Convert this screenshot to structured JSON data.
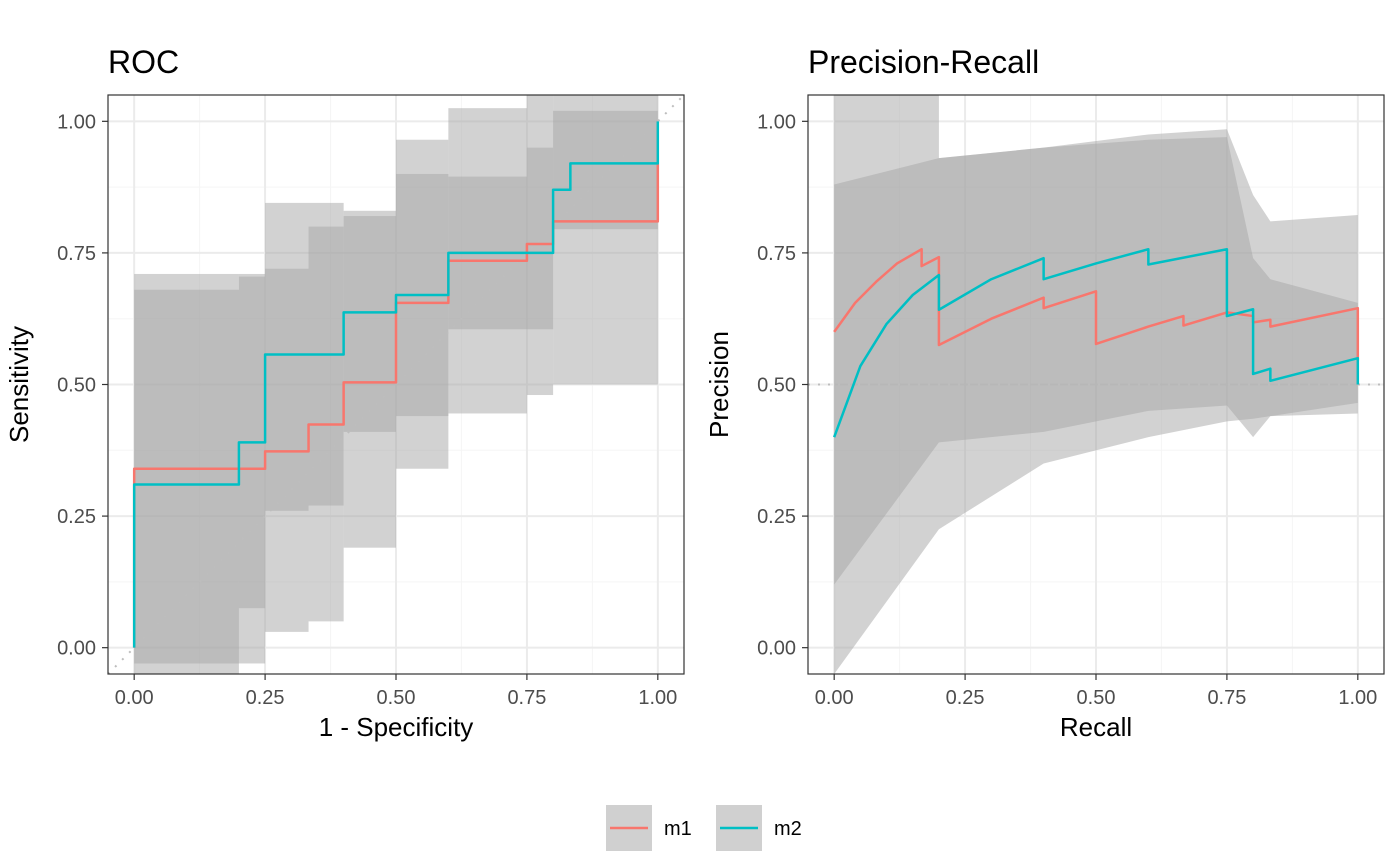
{
  "colors": {
    "m1": "#F8766D",
    "m2": "#00BFC4",
    "ci_band": "#a6a6a6",
    "grid_major": "#ebebeb",
    "grid_minor": "#f5f5f5",
    "panel_border": "#333333",
    "reference": "#bdbdbd",
    "legend_key_bg": "#d0d0d0"
  },
  "legend": {
    "position": "bottom",
    "items": [
      {
        "label": "m1",
        "color": "#F8766D"
      },
      {
        "label": "m2",
        "color": "#00BFC4"
      }
    ]
  },
  "chart_data": [
    {
      "type": "line",
      "title": "ROC",
      "xlabel": "1 - Specificity",
      "ylabel": "Sensitivity",
      "xlim": [
        -0.05,
        1.05
      ],
      "ylim": [
        -0.05,
        1.05
      ],
      "xticks": [
        "0.00",
        "0.25",
        "0.50",
        "0.75",
        "1.00"
      ],
      "yticks": [
        "0.00",
        "0.25",
        "0.50",
        "0.75",
        "1.00"
      ],
      "tick_values": [
        0,
        0.25,
        0.5,
        0.75,
        1.0
      ],
      "grid": true,
      "reference_line": "diagonal",
      "series": [
        {
          "name": "m1",
          "x": [
            0,
            0,
            0.2,
            0.25,
            0.25,
            0.333,
            0.333,
            0.4,
            0.4,
            0.5,
            0.5,
            0.6,
            0.6,
            0.75,
            0.75,
            0.8,
            0.8,
            1.0,
            1.0
          ],
          "y": [
            0,
            0.34,
            0.34,
            0.34,
            0.373,
            0.373,
            0.424,
            0.424,
            0.504,
            0.504,
            0.655,
            0.655,
            0.735,
            0.735,
            0.767,
            0.767,
            0.81,
            0.81,
            0.92
          ],
          "band_inner": [
            {
              "x0": 0,
              "x1": 0.2,
              "lo": -0.05,
              "hi": 0.68
            },
            {
              "x0": 0.2,
              "x1": 0.25,
              "lo": 0.075,
              "hi": 0.705
            },
            {
              "x0": 0.25,
              "x1": 0.333,
              "lo": 0.26,
              "hi": 0.72
            },
            {
              "x0": 0.333,
              "x1": 0.4,
              "lo": 0.27,
              "hi": 0.8
            },
            {
              "x0": 0.4,
              "x1": 0.5,
              "lo": 0.41,
              "hi": 0.82
            },
            {
              "x0": 0.5,
              "x1": 0.6,
              "lo": 0.44,
              "hi": 0.9
            },
            {
              "x0": 0.6,
              "x1": 0.75,
              "lo": 0.605,
              "hi": 0.895
            },
            {
              "x0": 0.75,
              "x1": 0.8,
              "lo": 0.605,
              "hi": 0.95
            },
            {
              "x0": 0.8,
              "x1": 1.0,
              "lo": 0.795,
              "hi": 1.02
            }
          ]
        },
        {
          "name": "m2",
          "x": [
            0,
            0,
            0.2,
            0.2,
            0.25,
            0.25,
            0.4,
            0.4,
            0.5,
            0.5,
            0.6,
            0.6,
            0.8,
            0.8,
            0.833,
            0.833,
            1.0,
            1.0
          ],
          "y": [
            0,
            0.31,
            0.31,
            0.39,
            0.39,
            0.557,
            0.557,
            0.637,
            0.637,
            0.67,
            0.67,
            0.75,
            0.75,
            0.87,
            0.87,
            0.92,
            0.92,
            1.0
          ],
          "band_inner": [
            {
              "x0": 0,
              "x1": 0.2,
              "lo": -0.03,
              "hi": 0.71
            },
            {
              "x0": 0.2,
              "x1": 0.25,
              "lo": -0.03,
              "hi": 0.71
            },
            {
              "x0": 0.25,
              "x1": 0.333,
              "lo": 0.03,
              "hi": 0.845
            },
            {
              "x0": 0.333,
              "x1": 0.4,
              "lo": 0.05,
              "hi": 0.845
            },
            {
              "x0": 0.4,
              "x1": 0.5,
              "lo": 0.19,
              "hi": 0.83
            },
            {
              "x0": 0.5,
              "x1": 0.6,
              "lo": 0.34,
              "hi": 0.965
            },
            {
              "x0": 0.6,
              "x1": 0.75,
              "lo": 0.445,
              "hi": 1.025
            },
            {
              "x0": 0.75,
              "x1": 0.8,
              "lo": 0.48,
              "hi": 1.05
            },
            {
              "x0": 0.8,
              "x1": 1.0,
              "lo": 0.5,
              "hi": 1.05
            }
          ]
        }
      ]
    },
    {
      "type": "line",
      "title": "Precision-Recall",
      "xlabel": "Recall",
      "ylabel": "Precision",
      "xlim": [
        -0.05,
        1.05
      ],
      "ylim": [
        -0.05,
        1.05
      ],
      "xticks": [
        "0.00",
        "0.25",
        "0.50",
        "0.75",
        "1.00"
      ],
      "yticks": [
        "0.00",
        "0.25",
        "0.50",
        "0.75",
        "1.00"
      ],
      "tick_values": [
        0,
        0.25,
        0.5,
        0.75,
        1.0
      ],
      "grid": true,
      "reference_line": "horizontal 0.5",
      "series": [
        {
          "name": "m1",
          "x": [
            0,
            0.04,
            0.08,
            0.12,
            0.167,
            0.167,
            0.2,
            0.2,
            0.3,
            0.4,
            0.4,
            0.5,
            0.5,
            0.6,
            0.667,
            0.667,
            0.75,
            0.8,
            0.8,
            0.833,
            0.833,
            1.0,
            1.0
          ],
          "y": [
            0.6,
            0.655,
            0.695,
            0.73,
            0.757,
            0.725,
            0.742,
            0.575,
            0.625,
            0.665,
            0.645,
            0.677,
            0.577,
            0.61,
            0.63,
            0.612,
            0.637,
            0.63,
            0.618,
            0.623,
            0.61,
            0.645,
            0.545
          ],
          "band_inner": []
        },
        {
          "name": "m2",
          "x": [
            0,
            0.05,
            0.1,
            0.15,
            0.2,
            0.2,
            0.3,
            0.4,
            0.4,
            0.5,
            0.6,
            0.6,
            0.75,
            0.75,
            0.8,
            0.8,
            0.833,
            0.833,
            1.0,
            1.0
          ],
          "y": [
            0.4,
            0.535,
            0.615,
            0.67,
            0.708,
            0.642,
            0.7,
            0.74,
            0.7,
            0.73,
            0.757,
            0.728,
            0.757,
            0.63,
            0.643,
            0.52,
            0.53,
            0.507,
            0.55,
            0.5
          ],
          "band_inner": []
        }
      ],
      "band_outer": [
        {
          "x": 0,
          "lo": -0.05,
          "hi": 1.05
        },
        {
          "x": 0.2,
          "lo": 0.225,
          "hi": 1.05
        },
        {
          "x": 0.2,
          "lo": 0.225,
          "hi": 0.93
        },
        {
          "x": 0.4,
          "lo": 0.35,
          "hi": 0.95
        },
        {
          "x": 0.6,
          "lo": 0.4,
          "hi": 0.975
        },
        {
          "x": 0.75,
          "lo": 0.43,
          "hi": 0.985
        },
        {
          "x": 0.8,
          "lo": 0.435,
          "hi": 0.86
        },
        {
          "x": 0.833,
          "lo": 0.44,
          "hi": 0.81
        },
        {
          "x": 1.0,
          "lo": 0.445,
          "hi": 0.822
        }
      ],
      "band_mid": [
        {
          "x": 0,
          "lo": 0.12,
          "hi": 0.88
        },
        {
          "x": 0.2,
          "lo": 0.39,
          "hi": 0.93
        },
        {
          "x": 0.4,
          "lo": 0.41,
          "hi": 0.95
        },
        {
          "x": 0.6,
          "lo": 0.45,
          "hi": 0.965
        },
        {
          "x": 0.75,
          "lo": 0.46,
          "hi": 0.97
        },
        {
          "x": 0.8,
          "lo": 0.4,
          "hi": 0.74
        },
        {
          "x": 0.833,
          "lo": 0.44,
          "hi": 0.7
        },
        {
          "x": 1.0,
          "lo": 0.465,
          "hi": 0.655
        }
      ]
    }
  ]
}
